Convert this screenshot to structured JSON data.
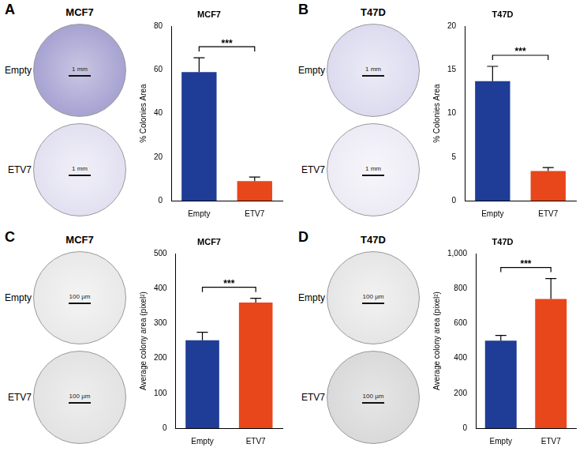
{
  "panels": [
    {
      "label": "A",
      "image_title": "MCF7",
      "rows": [
        "Empty",
        "ETV7"
      ],
      "scale_bar": "1 mm"
    },
    {
      "label": "B",
      "image_title": "T47D",
      "rows": [
        "Empty",
        "ETV7"
      ],
      "scale_bar": "1 mm"
    },
    {
      "label": "C",
      "image_title": "MCF7",
      "rows": [
        "Empty",
        "ETV7"
      ],
      "scale_bar": "100 µm"
    },
    {
      "label": "D",
      "image_title": "T47D",
      "rows": [
        "Empty",
        "ETV7"
      ],
      "scale_bar": "100 µm"
    }
  ],
  "chart_data": [
    {
      "type": "bar",
      "title": "MCF7",
      "y_label": "% Colonies Area",
      "categories": [
        "Empty",
        "ETV7"
      ],
      "values": [
        59,
        9
      ],
      "errors": [
        6.5,
        1.8
      ],
      "colors": [
        "#1f3c96",
        "#e8461b"
      ],
      "ylim": [
        0,
        80
      ],
      "yticks": [
        0,
        20,
        40,
        60,
        80
      ],
      "grid": false,
      "annotation": "***"
    },
    {
      "type": "bar",
      "title": "T47D",
      "y_label": "% Colonies Area",
      "categories": [
        "Empty",
        "ETV7"
      ],
      "values": [
        13.7,
        3.4
      ],
      "errors": [
        1.7,
        0.4
      ],
      "colors": [
        "#1f3c96",
        "#e8461b"
      ],
      "ylim": [
        0,
        20
      ],
      "yticks": [
        0,
        5,
        10,
        15,
        20
      ],
      "grid": false,
      "annotation": "***"
    },
    {
      "type": "bar",
      "title": "MCF7",
      "y_label": "Average colony area (pixel²)",
      "categories": [
        "Empty",
        "ETV7"
      ],
      "values": [
        252,
        360
      ],
      "errors": [
        23,
        12
      ],
      "colors": [
        "#1f3c96",
        "#e8461b"
      ],
      "ylim": [
        0,
        500
      ],
      "yticks": [
        0,
        100,
        200,
        300,
        400,
        500
      ],
      "grid": false,
      "annotation": "***"
    },
    {
      "type": "bar",
      "title": "T47D",
      "y_label": "Average colony area (pixel²)",
      "categories": [
        "Empty",
        "ETV7"
      ],
      "values": [
        502,
        740
      ],
      "errors": [
        30,
        118
      ],
      "colors": [
        "#1f3c96",
        "#e8461b"
      ],
      "ylim": [
        0,
        1000
      ],
      "yticks": [
        0,
        200,
        400,
        600,
        800,
        1000
      ],
      "grid": false,
      "annotation": "***"
    }
  ]
}
